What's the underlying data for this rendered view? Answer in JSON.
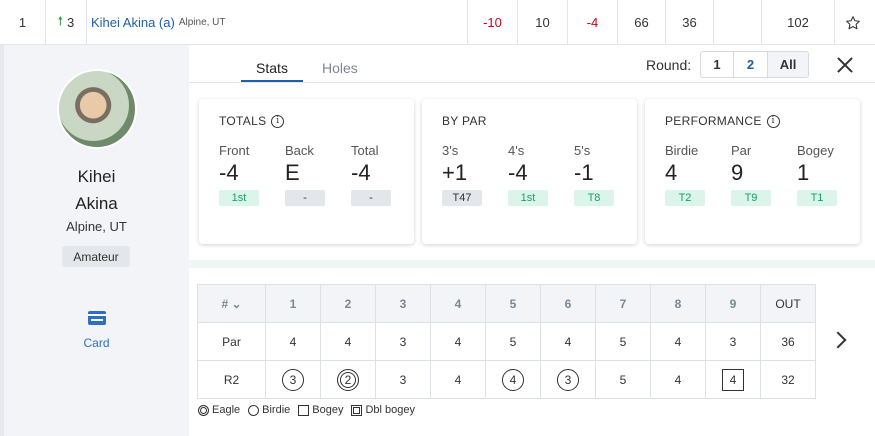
{
  "leaderboard_row": {
    "position": "1",
    "movement": "3",
    "player_name": "Kihei Akina (a)",
    "player_location": "Alpine, UT",
    "to_par": "-10",
    "thru": "10",
    "today": "-4",
    "r1": "66",
    "r2": "36",
    "r3": "",
    "total": "102",
    "colors": {
      "under_par": "#d0021b",
      "movement_up": "#1a9d3a"
    }
  },
  "profile": {
    "first_name": "Kihei",
    "last_name": "Akina",
    "location": "Alpine, UT",
    "status_badge": "Amateur",
    "card_label": "Card"
  },
  "tabs": [
    {
      "label": "Stats",
      "active": true
    },
    {
      "label": "Holes",
      "active": false
    }
  ],
  "round_selector": {
    "label": "Round:",
    "options": [
      "1",
      "2",
      "All"
    ],
    "selected": "All"
  },
  "stats": {
    "totals": {
      "title": "TOTALS",
      "cols": [
        {
          "label": "Front",
          "value": "-4",
          "rank": "1st",
          "rank_style": "green"
        },
        {
          "label": "Back",
          "value": "E",
          "rank": "-",
          "rank_style": "gray"
        },
        {
          "label": "Total",
          "value": "-4",
          "rank": "-",
          "rank_style": "gray"
        }
      ]
    },
    "by_par": {
      "title": "BY PAR",
      "cols": [
        {
          "label": "3's",
          "value": "+1",
          "rank": "T47",
          "rank_style": "gray"
        },
        {
          "label": "4's",
          "value": "-4",
          "rank": "1st",
          "rank_style": "green"
        },
        {
          "label": "5's",
          "value": "-1",
          "rank": "T8",
          "rank_style": "green"
        }
      ]
    },
    "performance": {
      "title": "PERFORMANCE",
      "cols": [
        {
          "label": "Birdie",
          "value": "4",
          "rank": "T2",
          "rank_style": "green"
        },
        {
          "label": "Par",
          "value": "9",
          "rank": "T9",
          "rank_style": "green"
        },
        {
          "label": "Bogey",
          "value": "1",
          "rank": "T1",
          "rank_style": "green"
        }
      ]
    }
  },
  "scorecard": {
    "hole_header": "#",
    "holes": [
      "1",
      "2",
      "3",
      "4",
      "5",
      "6",
      "7",
      "8",
      "9"
    ],
    "out_label": "OUT",
    "par_label": "Par",
    "par": [
      "4",
      "4",
      "3",
      "4",
      "5",
      "4",
      "5",
      "4",
      "3"
    ],
    "par_out": "36",
    "round_label": "R2",
    "scores": [
      "3",
      "2",
      "3",
      "4",
      "4",
      "3",
      "5",
      "4",
      "4"
    ],
    "score_types": [
      "birdie",
      "eagle",
      "par",
      "par",
      "birdie",
      "birdie",
      "par",
      "par",
      "bogey"
    ],
    "score_out": "32"
  },
  "legend": {
    "eagle": "Eagle",
    "birdie": "Birdie",
    "bogey": "Bogey",
    "dbl_bogey": "Dbl bogey"
  }
}
